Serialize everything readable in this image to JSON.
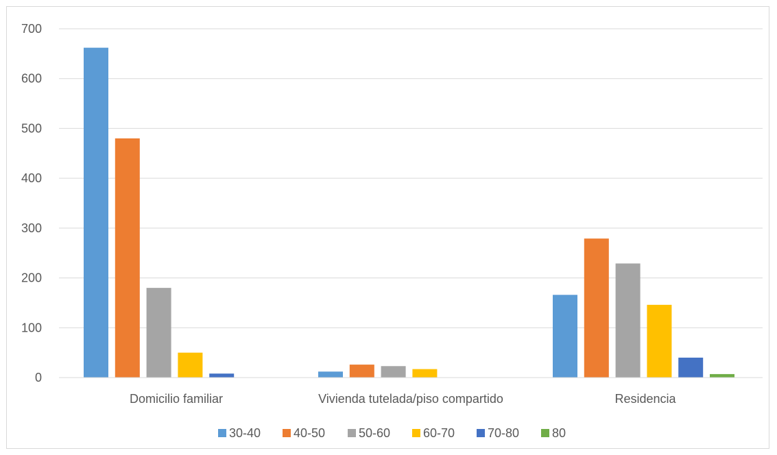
{
  "chart_data": {
    "type": "bar",
    "title": "",
    "xlabel": "",
    "ylabel": "",
    "categories": [
      "Domicilio familiar",
      "Vivienda tutelada/piso compartido",
      "Residencia"
    ],
    "ylim": [
      0,
      700
    ],
    "yticks": [
      0,
      100,
      200,
      300,
      400,
      500,
      600,
      700
    ],
    "grid": true,
    "legend_position": "bottom",
    "series": [
      {
        "name": "30-40",
        "color": "#5b9bd5",
        "values": [
          662,
          12,
          166
        ]
      },
      {
        "name": "40-50",
        "color": "#ed7d31",
        "values": [
          480,
          26,
          279
        ]
      },
      {
        "name": "50-60",
        "color": "#a5a5a5",
        "values": [
          180,
          23,
          229
        ]
      },
      {
        "name": "60-70",
        "color": "#ffc000",
        "values": [
          50,
          17,
          146
        ]
      },
      {
        "name": "70-80",
        "color": "#4472c4",
        "values": [
          8,
          0,
          40
        ]
      },
      {
        "name": "80",
        "color": "#70ad47",
        "values": [
          0,
          0,
          7
        ]
      }
    ]
  }
}
